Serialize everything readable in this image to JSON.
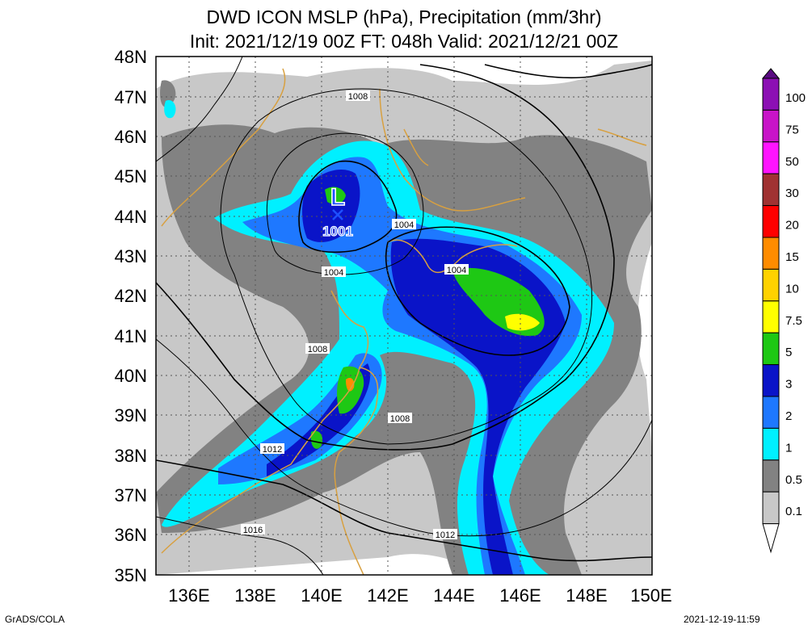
{
  "header": {
    "title_line1": "DWD ICON MSLP (hPa), Precipitation (mm/3hr)",
    "title_line2": "Init: 2021/12/19 00Z  FT: 048h  Valid: 2021/12/21 00Z"
  },
  "axes": {
    "lat_labels": [
      "48N",
      "47N",
      "46N",
      "45N",
      "44N",
      "43N",
      "42N",
      "41N",
      "40N",
      "39N",
      "38N",
      "37N",
      "36N",
      "35N"
    ],
    "lon_labels": [
      "136E",
      "138E",
      "140E",
      "142E",
      "144E",
      "146E",
      "148E",
      "150E"
    ]
  },
  "low_center": {
    "symbol": "L",
    "pressure": "1001"
  },
  "isobar_labels": [
    "1008",
    "1004",
    "1004",
    "1004",
    "1008",
    "1008",
    "1012",
    "1012",
    "1016"
  ],
  "colorbar": {
    "labels": [
      "100",
      "75",
      "50",
      "30",
      "20",
      "15",
      "10",
      "7.5",
      "5",
      "3",
      "2",
      "1",
      "0.5",
      "0.1"
    ],
    "colors": [
      "#5a0a82",
      "#8c10b4",
      "#c814c8",
      "#ff14ff",
      "#a03232",
      "#ff0000",
      "#ff8c00",
      "#ffd200",
      "#ffff00",
      "#1ec814",
      "#0a14c8",
      "#1e78ff",
      "#00f0ff",
      "#828282",
      "#c8c8c8",
      "#ffffff"
    ]
  },
  "footer": {
    "left": "GrADS/COLA",
    "right": "2021-12-19-11:59"
  }
}
